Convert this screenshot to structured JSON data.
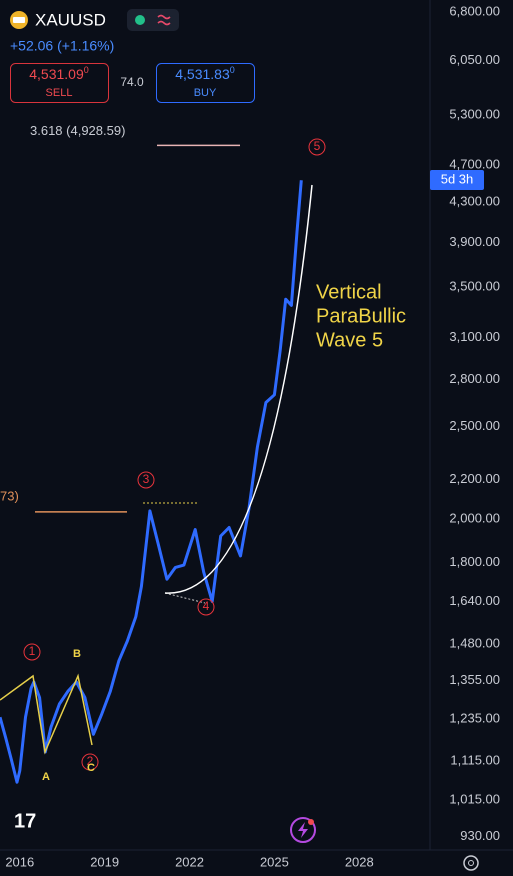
{
  "header": {
    "symbol": "XAUUSD",
    "change": "+52.06 (+1.16%)",
    "sell_price": "4,531.09",
    "sell_sup": "0",
    "sell_label": "SELL",
    "spread": "74.0",
    "buy_price": "4,531.83",
    "buy_sup": "0",
    "buy_label": "BUY",
    "countdown": "5d 3h"
  },
  "chart_data": {
    "type": "line",
    "log_scale": true,
    "grid": false,
    "color": "#2f6bff",
    "x": [
      2015.3,
      2015.5,
      2015.7,
      2015.9,
      2016.0,
      2016.2,
      2016.4,
      2016.5,
      2016.7,
      2016.9,
      2017.1,
      2017.4,
      2017.7,
      2018.0,
      2018.3,
      2018.6,
      2018.9,
      2019.2,
      2019.5,
      2019.8,
      2020.1,
      2020.3,
      2020.6,
      2020.9,
      2021.2,
      2021.5,
      2021.8,
      2022.2,
      2022.5,
      2022.8,
      2023.1,
      2023.4,
      2023.8,
      2024.1,
      2024.4,
      2024.7,
      2025.0,
      2025.2,
      2025.4,
      2025.6,
      2025.8,
      2025.95
    ],
    "values": [
      1240,
      1180,
      1120,
      1060,
      1090,
      1240,
      1330,
      1350,
      1300,
      1140,
      1210,
      1280,
      1320,
      1350,
      1300,
      1190,
      1250,
      1320,
      1420,
      1490,
      1580,
      1700,
      2040,
      1880,
      1730,
      1780,
      1790,
      1950,
      1760,
      1640,
      1920,
      1960,
      1830,
      2050,
      2380,
      2650,
      2700,
      3000,
      3400,
      3350,
      4000,
      4530
    ],
    "xlim": [
      2015.3,
      2030.5
    ],
    "xticks": [
      2016,
      2019,
      2022,
      2025,
      2028
    ],
    "ylim": [
      900,
      7000
    ],
    "yticks": [
      {
        "value": 930,
        "label": "930.00"
      },
      {
        "value": 1015,
        "label": "1,015.00"
      },
      {
        "value": 1115,
        "label": "1,115.00"
      },
      {
        "value": 1235,
        "label": "1,235.00"
      },
      {
        "value": 1355,
        "label": "1,355.00"
      },
      {
        "value": 1480,
        "label": "1,480.00"
      },
      {
        "value": 1640,
        "label": "1,640.00"
      },
      {
        "value": 1800,
        "label": "1,800.00"
      },
      {
        "value": 2000,
        "label": "2,000.00"
      },
      {
        "value": 2200,
        "label": "2,200.00"
      },
      {
        "value": 2500,
        "label": "2,500.00"
      },
      {
        "value": 2800,
        "label": "2,800.00"
      },
      {
        "value": 3100,
        "label": "3,100.00"
      },
      {
        "value": 3500,
        "label": "3,500.00"
      },
      {
        "value": 3900,
        "label": "3,900.00"
      },
      {
        "value": 4300,
        "label": "4,300.00"
      },
      {
        "value": 4700,
        "label": "4,700.00"
      },
      {
        "value": 5300,
        "label": "5,300.00"
      },
      {
        "value": 6050,
        "label": "6,050.00"
      },
      {
        "value": 6800,
        "label": "6,800.00"
      }
    ],
    "levels": [
      {
        "label": "3.618 (4,928.59)",
        "value": 4928.59,
        "color": "#e8b4b4"
      },
      {
        "label": "73)",
        "value": 2035,
        "color": "#e0905a"
      }
    ],
    "waves": [
      "1",
      "2",
      "3",
      "4",
      "5",
      "A",
      "B",
      "C"
    ],
    "annotation": [
      "Vertical",
      "ParaBullic",
      "Wave 5"
    ]
  }
}
